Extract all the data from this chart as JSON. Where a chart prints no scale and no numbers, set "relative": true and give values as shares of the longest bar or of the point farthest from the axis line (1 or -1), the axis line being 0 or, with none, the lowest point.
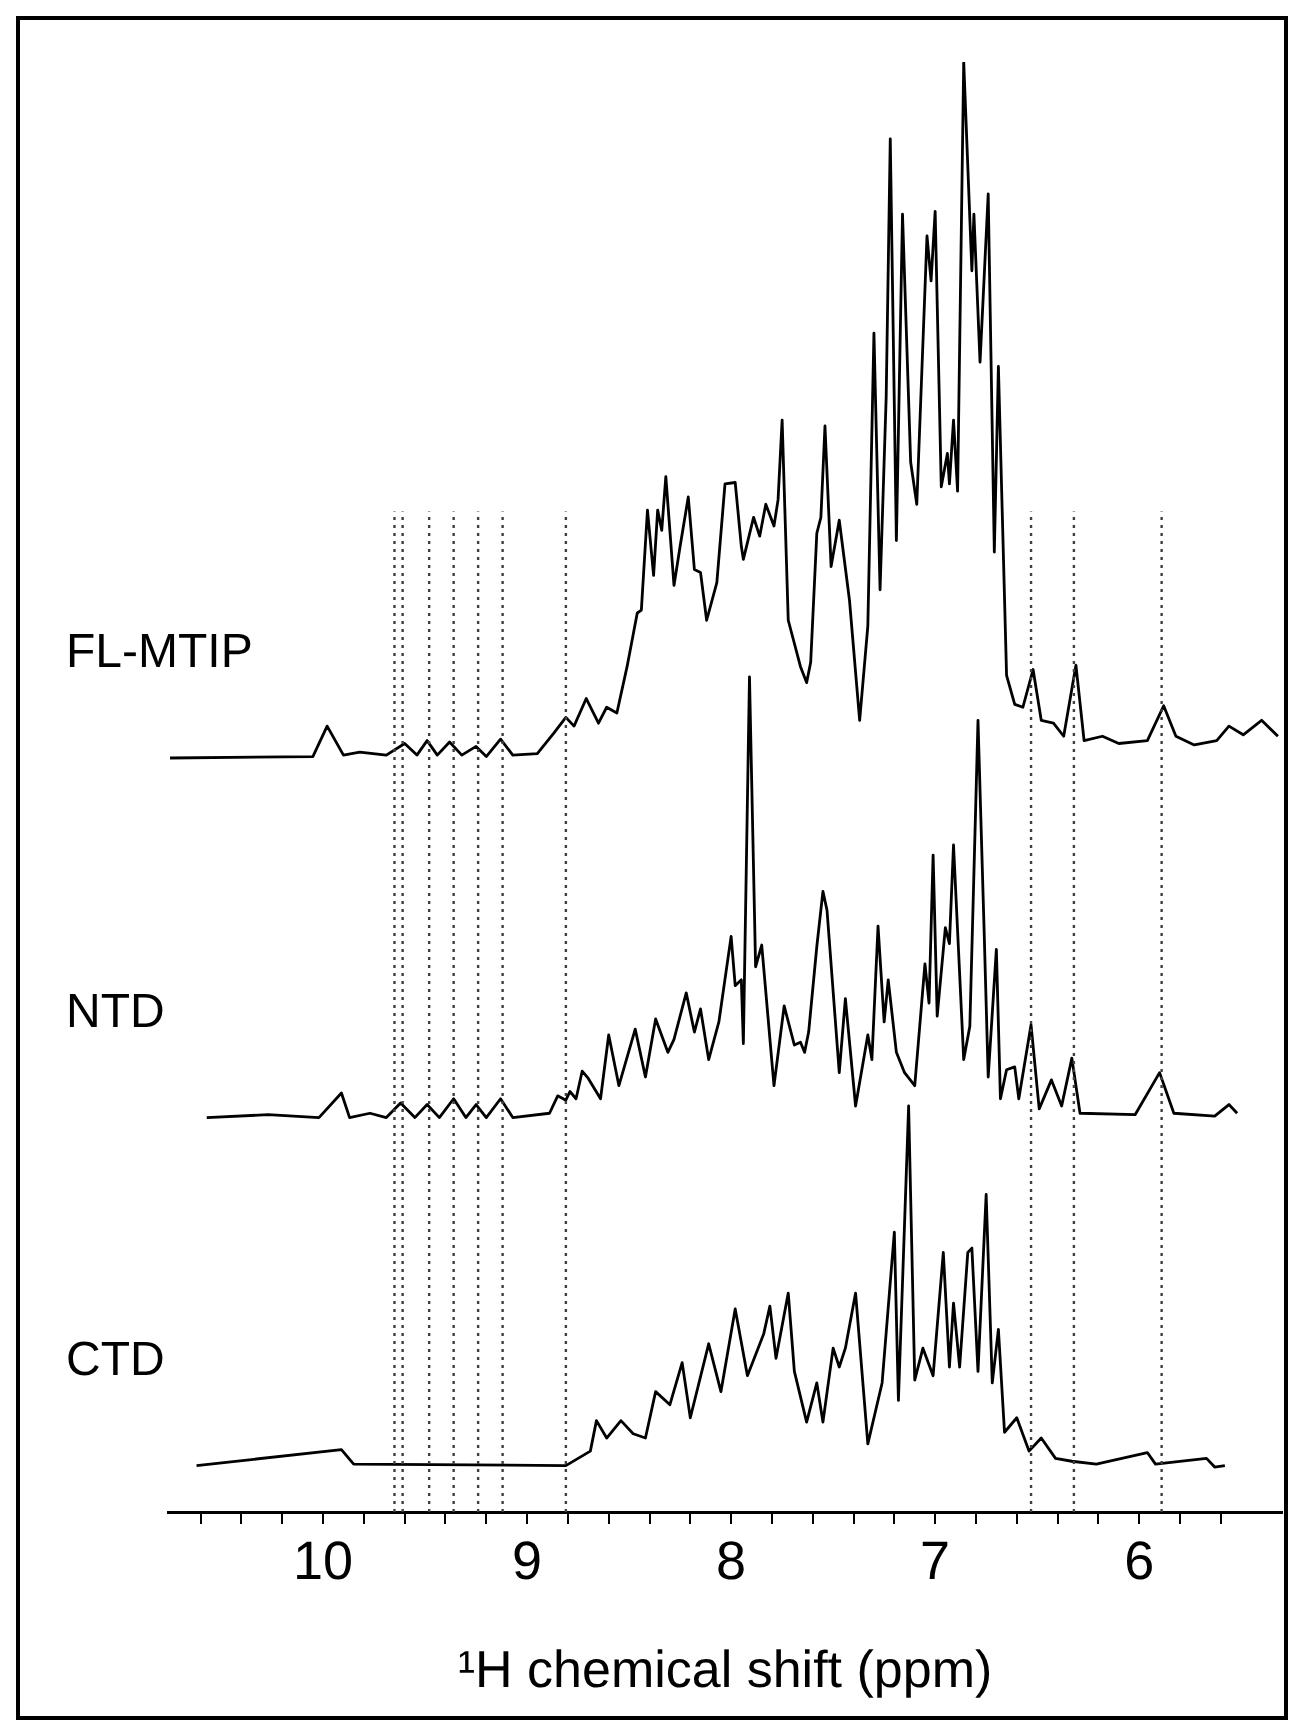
{
  "chart_data": {
    "type": "line",
    "relative": true,
    "xlabel": "¹H chemical shift (ppm)",
    "xlim": [
      10.76,
      5.3
    ],
    "xticks": [
      {
        "value": 10.6,
        "label": null
      },
      {
        "value": 10.4,
        "label": null
      },
      {
        "value": 10.2,
        "label": null
      },
      10,
      {
        "value": 9.8,
        "label": null
      },
      {
        "value": 9.6,
        "label": null
      },
      {
        "value": 9.4,
        "label": null
      },
      {
        "value": 9.2,
        "label": null
      },
      9,
      {
        "value": 8.8,
        "label": null
      },
      {
        "value": 8.6,
        "label": null
      },
      {
        "value": 8.4,
        "label": null
      },
      {
        "value": 8.2,
        "label": null
      },
      8,
      {
        "value": 7.8,
        "label": null
      },
      {
        "value": 7.6,
        "label": null
      },
      {
        "value": 7.4,
        "label": null
      },
      {
        "value": 7.2,
        "label": null
      },
      7,
      {
        "value": 6.8,
        "label": null
      },
      {
        "value": 6.6,
        "label": null
      },
      {
        "value": 6.4,
        "label": null
      },
      {
        "value": 6.2,
        "label": null
      },
      6,
      {
        "value": 5.8,
        "label": null
      },
      {
        "value": 5.6,
        "label": null
      }
    ],
    "tick_labels": "x",
    "legend": false,
    "marker": "none",
    "line_style": "solid",
    "series": [
      {
        "name": "FL-MTIP",
        "color": "#000000",
        "x": [
          10.75,
          10.05,
          9.98,
          9.9,
          9.82,
          9.69,
          9.6,
          9.54,
          9.49,
          9.44,
          9.38,
          9.32,
          9.25,
          9.2,
          9.13,
          9.07,
          8.95,
          8.87,
          8.81,
          8.77,
          8.71,
          8.65,
          8.61,
          8.56,
          8.51,
          8.46,
          8.44,
          8.41,
          8.38,
          8.36,
          8.34,
          8.32,
          8.28,
          8.25,
          8.21,
          8.18,
          8.15,
          8.12,
          8.07,
          8.03,
          7.98,
          7.95,
          7.94,
          7.89,
          7.86,
          7.83,
          7.79,
          7.77,
          7.75,
          7.72,
          7.66,
          7.63,
          7.61,
          7.58,
          7.56,
          7.54,
          7.51,
          7.47,
          7.42,
          7.37,
          7.33,
          7.3,
          7.27,
          7.24,
          7.22,
          7.19,
          7.16,
          7.12,
          7.09,
          7.04,
          7.02,
          7.0,
          6.97,
          6.94,
          6.93,
          6.91,
          6.89,
          6.86,
          6.82,
          6.81,
          6.78,
          6.74,
          6.71,
          6.69,
          6.65,
          6.61,
          6.57,
          6.52,
          6.48,
          6.42,
          6.37,
          6.31,
          6.27,
          6.18,
          6.1,
          5.96,
          5.88,
          5.82,
          5.73,
          5.62,
          5.56,
          5.49,
          5.4,
          5.32
        ],
        "values": [
          0.52,
          0.521,
          0.542,
          0.522,
          0.524,
          0.522,
          0.53,
          0.522,
          0.532,
          0.522,
          0.531,
          0.522,
          0.528,
          0.521,
          0.533,
          0.522,
          0.523,
          0.537,
          0.548,
          0.542,
          0.561,
          0.544,
          0.555,
          0.551,
          0.583,
          0.62,
          0.622,
          0.691,
          0.646,
          0.691,
          0.677,
          0.714,
          0.639,
          0.666,
          0.7,
          0.65,
          0.648,
          0.615,
          0.641,
          0.709,
          0.71,
          0.666,
          0.657,
          0.686,
          0.673,
          0.695,
          0.68,
          0.698,
          0.753,
          0.615,
          0.583,
          0.572,
          0.586,
          0.675,
          0.686,
          0.749,
          0.652,
          0.684,
          0.629,
          0.546,
          0.611,
          0.813,
          0.636,
          0.769,
          0.947,
          0.67,
          0.895,
          0.724,
          0.695,
          0.88,
          0.849,
          0.897,
          0.707,
          0.73,
          0.709,
          0.753,
          0.704,
          1.0,
          0.856,
          0.895,
          0.793,
          0.909,
          0.662,
          0.79,
          0.577,
          0.557,
          0.555,
          0.581,
          0.546,
          0.544,
          0.535,
          0.584,
          0.532,
          0.535,
          0.53,
          0.532,
          0.556,
          0.535,
          0.529,
          0.532,
          0.542,
          0.536,
          0.546,
          0.535
        ]
      },
      {
        "name": "NTD",
        "color": "#000000",
        "x": [
          10.57,
          10.27,
          10.02,
          9.91,
          9.87,
          9.77,
          9.69,
          9.62,
          9.55,
          9.49,
          9.43,
          9.36,
          9.3,
          9.25,
          9.2,
          9.13,
          9.07,
          8.89,
          8.85,
          8.81,
          8.79,
          8.76,
          8.73,
          8.7,
          8.64,
          8.6,
          8.55,
          8.47,
          8.42,
          8.37,
          8.31,
          8.28,
          8.22,
          8.18,
          8.15,
          8.11,
          8.06,
          8.0,
          7.98,
          7.95,
          7.94,
          7.91,
          7.88,
          7.85,
          7.79,
          7.74,
          7.69,
          7.66,
          7.64,
          7.62,
          7.58,
          7.55,
          7.53,
          7.47,
          7.44,
          7.39,
          7.33,
          7.31,
          7.28,
          7.25,
          7.23,
          7.19,
          7.15,
          7.1,
          7.05,
          7.03,
          7.01,
          6.99,
          6.95,
          6.93,
          6.91,
          6.86,
          6.83,
          6.79,
          6.76,
          6.74,
          6.7,
          6.68,
          6.65,
          6.61,
          6.59,
          6.53,
          6.49,
          6.43,
          6.38,
          6.33,
          6.29,
          6.02,
          5.9,
          5.83,
          5.63,
          5.56,
          5.52
        ],
        "values": [
          0.272,
          0.274,
          0.272,
          0.289,
          0.272,
          0.275,
          0.272,
          0.282,
          0.272,
          0.281,
          0.272,
          0.285,
          0.272,
          0.281,
          0.272,
          0.285,
          0.272,
          0.275,
          0.287,
          0.284,
          0.29,
          0.285,
          0.304,
          0.299,
          0.285,
          0.329,
          0.294,
          0.333,
          0.3,
          0.34,
          0.317,
          0.326,
          0.358,
          0.331,
          0.347,
          0.312,
          0.338,
          0.397,
          0.363,
          0.367,
          0.323,
          0.576,
          0.376,
          0.391,
          0.294,
          0.349,
          0.322,
          0.324,
          0.317,
          0.331,
          0.39,
          0.428,
          0.415,
          0.303,
          0.354,
          0.28,
          0.329,
          0.312,
          0.404,
          0.338,
          0.367,
          0.317,
          0.303,
          0.294,
          0.378,
          0.351,
          0.453,
          0.342,
          0.403,
          0.392,
          0.46,
          0.312,
          0.335,
          0.546,
          0.401,
          0.3,
          0.388,
          0.285,
          0.305,
          0.307,
          0.285,
          0.336,
          0.278,
          0.298,
          0.28,
          0.313,
          0.275,
          0.274,
          0.303,
          0.275,
          0.273,
          0.281,
          0.275
        ]
      },
      {
        "name": "CTD",
        "color": "#000000",
        "x": [
          10.62,
          9.91,
          9.85,
          8.81,
          8.69,
          8.66,
          8.61,
          8.54,
          8.48,
          8.42,
          8.37,
          8.3,
          8.24,
          8.2,
          8.11,
          8.05,
          7.98,
          7.92,
          7.84,
          7.81,
          7.78,
          7.72,
          7.69,
          7.63,
          7.58,
          7.55,
          7.5,
          7.47,
          7.44,
          7.39,
          7.33,
          7.26,
          7.2,
          7.18,
          7.13,
          7.1,
          7.06,
          7.01,
          6.96,
          6.93,
          6.91,
          6.88,
          6.84,
          6.82,
          6.79,
          6.75,
          6.72,
          6.69,
          6.66,
          6.6,
          6.54,
          6.48,
          6.41,
          6.33,
          6.21,
          5.96,
          5.92,
          5.67,
          5.63,
          5.58
        ],
        "values": [
          0.032,
          0.043,
          0.033,
          0.032,
          0.042,
          0.063,
          0.051,
          0.063,
          0.054,
          0.051,
          0.083,
          0.074,
          0.103,
          0.065,
          0.116,
          0.083,
          0.14,
          0.094,
          0.123,
          0.142,
          0.106,
          0.151,
          0.097,
          0.062,
          0.089,
          0.062,
          0.113,
          0.1,
          0.113,
          0.151,
          0.047,
          0.089,
          0.193,
          0.077,
          0.28,
          0.091,
          0.113,
          0.094,
          0.179,
          0.1,
          0.144,
          0.1,
          0.179,
          0.182,
          0.097,
          0.219,
          0.089,
          0.126,
          0.055,
          0.065,
          0.042,
          0.051,
          0.037,
          0.035,
          0.033,
          0.041,
          0.033,
          0.037,
          0.031,
          0.032
        ]
      }
    ],
    "ref_lines": [
      {
        "axis": "x",
        "value": 9.65,
        "color": "#404040",
        "line_style": "dotted"
      },
      {
        "axis": "x",
        "value": 9.61,
        "color": "#404040",
        "line_style": "dotted"
      },
      {
        "axis": "x",
        "value": 9.48,
        "color": "#404040",
        "line_style": "dotted"
      },
      {
        "axis": "x",
        "value": 9.36,
        "color": "#404040",
        "line_style": "dotted"
      },
      {
        "axis": "x",
        "value": 9.24,
        "color": "#404040",
        "line_style": "dotted"
      },
      {
        "axis": "x",
        "value": 9.12,
        "color": "#404040",
        "line_style": "dotted"
      },
      {
        "axis": "x",
        "value": 8.81,
        "color": "#404040",
        "line_style": "dotted"
      },
      {
        "axis": "x",
        "value": 6.53,
        "color": "#404040",
        "line_style": "dotted"
      },
      {
        "axis": "x",
        "value": 6.32,
        "color": "#404040",
        "line_style": "dotted"
      },
      {
        "axis": "x",
        "value": 5.89,
        "color": "#404040",
        "line_style": "dotted"
      }
    ]
  }
}
